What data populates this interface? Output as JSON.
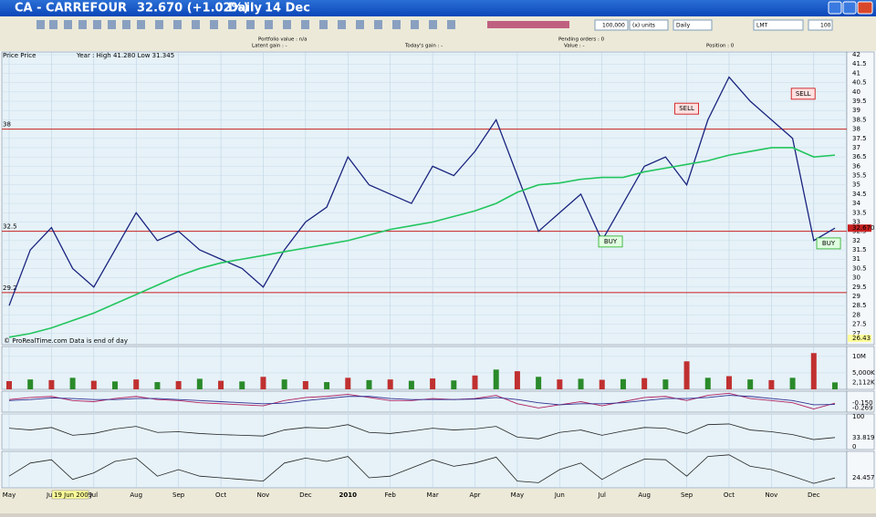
{
  "window": {
    "symbol": "CA - CARREFOUR",
    "price": "32.670 (+1.02%)",
    "period": "Daily",
    "date": "14 Dec"
  },
  "toolbar": {
    "quantity": "100,000",
    "unit": "(x) units",
    "timeframe": "Daily",
    "order_type": "LMT",
    "limit": "100"
  },
  "info": [
    "Portfolio value : n/a",
    "Latent gain : -",
    "Today's gain : -",
    "Pending orders : 0",
    "Value : -",
    "Position : 0"
  ],
  "footnote": "© ProRealTime.com Data is end of day",
  "cursor_date": "19 Jun 2009",
  "chart_data": {
    "type": "line",
    "title": "Price Price",
    "subtitle": "Year : High 41.280 Low 31.345",
    "categories": [
      "May",
      null,
      "Jun",
      null,
      "Jul",
      null,
      "Aug",
      null,
      "Sep",
      null,
      "Oct",
      null,
      "Nov",
      null,
      "Dec",
      null,
      "2010",
      null,
      "Feb",
      null,
      "Mar",
      null,
      "Apr",
      null,
      "May",
      null,
      "Jun",
      null,
      "Jul",
      null,
      "Aug",
      null,
      "Sep",
      null,
      "Oct",
      null,
      "Nov",
      null,
      "Dec",
      null
    ],
    "series": [
      {
        "color": "#1a237e",
        "values": [
          28.5,
          31.5,
          32.7,
          30.5,
          29.5,
          31.5,
          33.5,
          32,
          32.5,
          31.5,
          31,
          30.5,
          29.5,
          31.5,
          33,
          33.8,
          36.5,
          35,
          34.5,
          34,
          36,
          35.5,
          36.8,
          38.5,
          35.5,
          32.5,
          33.5,
          34.5,
          32,
          34,
          36,
          36.5,
          35,
          38.5,
          40.8,
          39.5,
          38.5,
          37.5,
          32,
          32.67
        ]
      },
      {
        "color": "#22c55e",
        "values": [
          26.8,
          27,
          27.3,
          27.7,
          28.1,
          28.6,
          29.1,
          29.6,
          30.1,
          30.5,
          30.8,
          31,
          31.2,
          31.4,
          31.6,
          31.8,
          32,
          32.3,
          32.6,
          32.8,
          33,
          33.3,
          33.6,
          34,
          34.6,
          35,
          35.1,
          35.3,
          35.4,
          35.4,
          35.7,
          35.9,
          36.1,
          36.3,
          36.6,
          36.8,
          37,
          37,
          36.5,
          36.6
        ]
      }
    ],
    "ylim": [
      26.4,
      42.15
    ],
    "yticks": [
      27,
      27.5,
      28,
      28.5,
      29,
      29.5,
      30,
      30.5,
      31,
      31.5,
      32,
      32.5,
      33,
      33.5,
      34,
      34.5,
      35,
      35.5,
      36,
      36.5,
      37,
      37.5,
      38,
      38.5,
      39,
      39.5,
      40,
      40.5,
      41,
      41.5,
      42
    ],
    "grid": true,
    "hlines": [
      38,
      32.5,
      29.2
    ],
    "current_price": {
      "value": 32.67,
      "label": "32.670"
    },
    "cursor_price": 26.43,
    "annotations": [
      {
        "text": "SELL",
        "x": 32,
        "y": 39.1
      },
      {
        "text": "SELL",
        "x": 37.5,
        "y": 39.9
      },
      {
        "text": "BUY",
        "x": 28.4,
        "y": 31.95
      },
      {
        "text": "BUY",
        "x": 38.7,
        "y": 31.85
      }
    ],
    "volume": {
      "color": "#c03030",
      "values": [
        2500,
        3000,
        2800,
        3500,
        2600,
        2400,
        3000,
        2200,
        2500,
        3200,
        2600,
        2400,
        3800,
        3000,
        2500,
        2200,
        3500,
        2800,
        3000,
        2600,
        3300,
        2700,
        4200,
        6000,
        5500,
        3800,
        3000,
        3200,
        2900,
        3100,
        3400,
        3000,
        8500,
        3500,
        4000,
        3000,
        2800,
        3500,
        11000,
        2112
      ],
      "ylim": [
        0,
        13000
      ],
      "yticks": [
        {
          "value": 10000,
          "label": "10M"
        },
        {
          "value": 5000,
          "label": "5,000K"
        }
      ],
      "last": {
        "value": 2112,
        "label": "2,112K"
      }
    },
    "macd": {
      "ylim": [
        -1,
        1
      ],
      "series": [
        {
          "color": "#b02060",
          "values": [
            0.2,
            0.4,
            0.5,
            0.1,
            0,
            0.3,
            0.5,
            0.2,
            0.1,
            -0.1,
            -0.2,
            -0.3,
            -0.4,
            0.1,
            0.4,
            0.5,
            0.7,
            0.4,
            0.1,
            0.1,
            0.3,
            0.2,
            0.3,
            0.6,
            -0.2,
            -0.6,
            -0.3,
            0,
            -0.4,
            0,
            0.4,
            0.5,
            0.1,
            0.6,
            0.8,
            0.3,
            0.1,
            -0.1,
            -0.7,
            -0.15
          ],
          "last": {
            "value": -0.15,
            "label": "-0.150"
          }
        },
        {
          "color": "#303090",
          "values": [
            0.1,
            0.2,
            0.35,
            0.3,
            0.2,
            0.2,
            0.3,
            0.3,
            0.2,
            0.1,
            0,
            -0.1,
            -0.2,
            -0.15,
            0.1,
            0.3,
            0.5,
            0.5,
            0.3,
            0.2,
            0.2,
            0.2,
            0.25,
            0.4,
            0.2,
            -0.1,
            -0.3,
            -0.2,
            -0.2,
            -0.1,
            0.1,
            0.3,
            0.3,
            0.4,
            0.6,
            0.5,
            0.3,
            0.1,
            -0.3,
            -0.269
          ],
          "last": {
            "value": -0.269,
            "label": "-0.269"
          }
        }
      ]
    },
    "rsi": {
      "color": "#222222",
      "ylim": [
        0,
        100
      ],
      "yticks": [
        0,
        100
      ],
      "values": [
        60,
        55,
        62,
        40,
        45,
        58,
        65,
        48,
        50,
        45,
        42,
        40,
        38,
        55,
        62,
        60,
        70,
        48,
        45,
        52,
        60,
        55,
        58,
        65,
        35,
        30,
        48,
        55,
        40,
        52,
        62,
        60,
        45,
        70,
        72,
        55,
        50,
        42,
        28,
        33.819
      ]
    },
    "stoch": {
      "color": "#222222",
      "ylim": [
        0,
        100
      ],
      "values": [
        30,
        70,
        80,
        20,
        40,
        75,
        85,
        30,
        50,
        30,
        25,
        20,
        15,
        70,
        85,
        75,
        90,
        25,
        30,
        55,
        80,
        60,
        70,
        88,
        15,
        10,
        50,
        70,
        20,
        55,
        82,
        80,
        30,
        90,
        95,
        60,
        50,
        30,
        8,
        24.457
      ]
    }
  }
}
